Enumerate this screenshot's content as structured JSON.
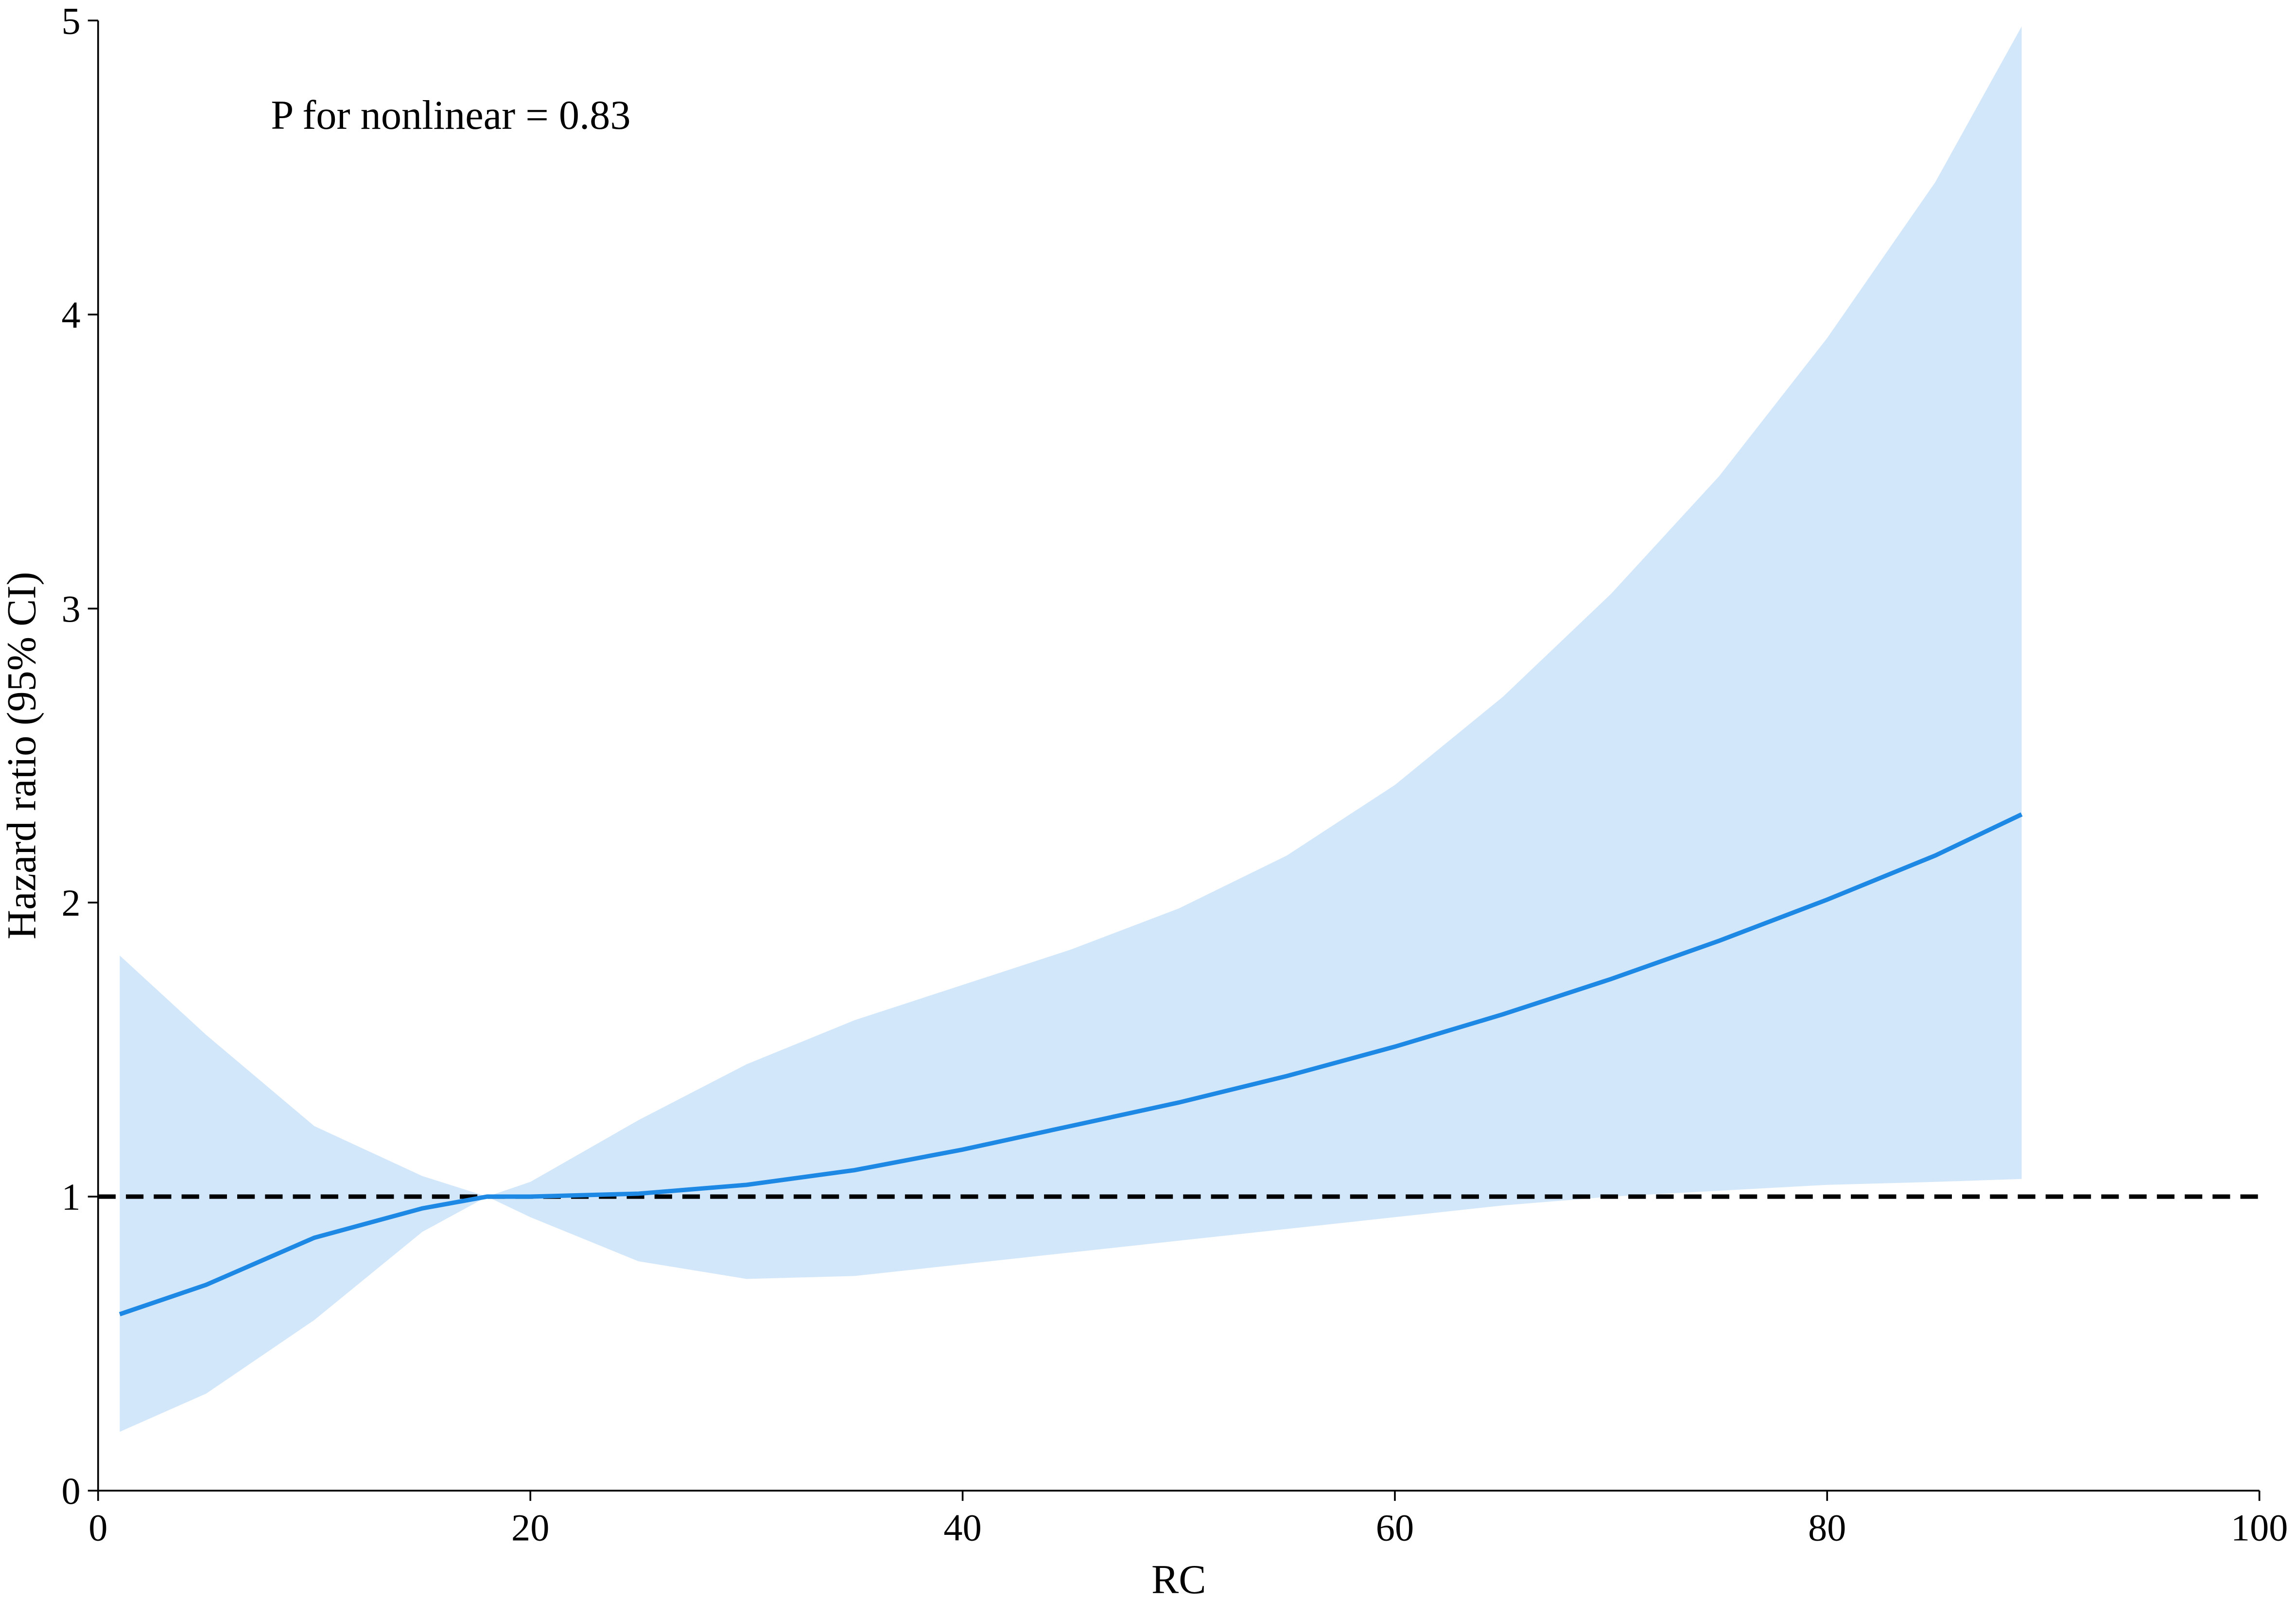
{
  "chart_data": {
    "type": "line",
    "annotation": "P for nonlinear = 0.83",
    "x_label": "RC",
    "y_label": "Hazard ratio (95% CI)",
    "x": [
      1,
      5,
      10,
      15,
      18,
      20,
      25,
      30,
      35,
      40,
      45,
      50,
      55,
      60,
      65,
      70,
      75,
      80,
      85,
      89
    ],
    "series": [
      {
        "color": "#1e88e5",
        "band_color": "#d3e7fb",
        "values": [
          0.6,
          0.7,
          0.86,
          0.96,
          1.0,
          1.0,
          1.01,
          1.04,
          1.09,
          1.16,
          1.24,
          1.32,
          1.41,
          1.51,
          1.62,
          1.74,
          1.87,
          2.01,
          2.16,
          2.3
        ],
        "ci_upper": [
          1.82,
          1.55,
          1.24,
          1.07,
          1.0,
          1.05,
          1.26,
          1.45,
          1.6,
          1.72,
          1.84,
          1.98,
          2.16,
          2.4,
          2.7,
          3.05,
          3.45,
          3.92,
          4.45,
          4.98
        ],
        "ci_lower": [
          0.2,
          0.33,
          0.58,
          0.88,
          1.0,
          0.93,
          0.78,
          0.72,
          0.73,
          0.77,
          0.81,
          0.85,
          0.89,
          0.93,
          0.97,
          1.0,
          1.02,
          1.04,
          1.05,
          1.06
        ]
      }
    ],
    "reference_line": 1,
    "xlim": [
      0,
      100
    ],
    "xticks": [
      0,
      20,
      40,
      60,
      80,
      100
    ],
    "ylim": [
      0,
      5
    ],
    "yticks": [
      0,
      1,
      2,
      3,
      4,
      5
    ]
  }
}
